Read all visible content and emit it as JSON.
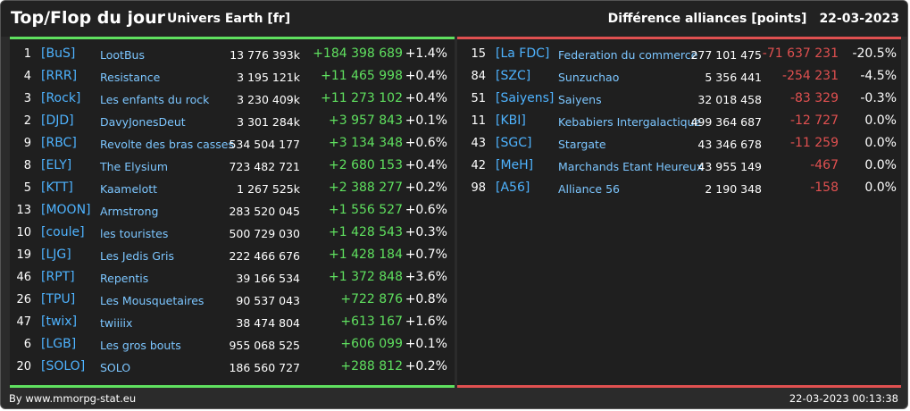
{
  "header": {
    "title": "Top/Flop du jour",
    "universe": "Univers Earth [fr]",
    "metric": "Différence alliances [points]",
    "date": "22-03-2023"
  },
  "top": [
    {
      "rank": "1",
      "tag": "[BuS]",
      "name": "LootBus",
      "points": "13 776 393k",
      "diff": "+184 398 689",
      "pct": "+1.4%"
    },
    {
      "rank": "4",
      "tag": "[RRR]",
      "name": "Resistance",
      "points": "3 195 121k",
      "diff": "+11 465 998",
      "pct": "+0.4%"
    },
    {
      "rank": "3",
      "tag": "[Rock]",
      "name": "Les enfants du rock",
      "points": "3 230 409k",
      "diff": "+11 273 102",
      "pct": "+0.4%"
    },
    {
      "rank": "2",
      "tag": "[DJD]",
      "name": "DavyJonesDeut",
      "points": "3 301 284k",
      "diff": "+3 957 843",
      "pct": "+0.1%"
    },
    {
      "rank": "9",
      "tag": "[RBC]",
      "name": "Revolte des bras casses",
      "points": "534 504 177",
      "diff": "+3 134 348",
      "pct": "+0.6%"
    },
    {
      "rank": "8",
      "tag": "[ELY]",
      "name": "The Elysium",
      "points": "723 482 721",
      "diff": "+2 680 153",
      "pct": "+0.4%"
    },
    {
      "rank": "5",
      "tag": "[KTT]",
      "name": "Kaamelott",
      "points": "1 267 525k",
      "diff": "+2 388 277",
      "pct": "+0.2%"
    },
    {
      "rank": "13",
      "tag": "[MOON]",
      "name": "Armstrong",
      "points": "283 520 045",
      "diff": "+1 556 527",
      "pct": "+0.6%"
    },
    {
      "rank": "10",
      "tag": "[coule]",
      "name": "les touristes",
      "points": "500 729 030",
      "diff": "+1 428 543",
      "pct": "+0.3%"
    },
    {
      "rank": "19",
      "tag": "[LJG]",
      "name": "Les Jedis Gris",
      "points": "222 466 676",
      "diff": "+1 428 184",
      "pct": "+0.7%"
    },
    {
      "rank": "46",
      "tag": "[RPT]",
      "name": "Repentis",
      "points": "39 166 534",
      "diff": "+1 372 848",
      "pct": "+3.6%"
    },
    {
      "rank": "26",
      "tag": "[TPU]",
      "name": "Les Mousquetaires",
      "points": "90 537 043",
      "diff": "+722 876",
      "pct": "+0.8%"
    },
    {
      "rank": "47",
      "tag": "[twix]",
      "name": "twiiiix",
      "points": "38 474 804",
      "diff": "+613 167",
      "pct": "+1.6%"
    },
    {
      "rank": "6",
      "tag": "[LGB]",
      "name": "Les gros bouts",
      "points": "955 068 525",
      "diff": "+606 099",
      "pct": "+0.1%"
    },
    {
      "rank": "20",
      "tag": "[SOLO]",
      "name": "SOLO",
      "points": "186 560 727",
      "diff": "+288 812",
      "pct": "+0.2%"
    }
  ],
  "flop": [
    {
      "rank": "15",
      "tag": "[La FDC]",
      "name": "Federation du commerce",
      "points": "277 101 475",
      "diff": "-71 637 231",
      "pct": "-20.5%"
    },
    {
      "rank": "84",
      "tag": "[SZC]",
      "name": "Sunzuchao",
      "points": "5 356 441",
      "diff": "-254 231",
      "pct": "-4.5%"
    },
    {
      "rank": "51",
      "tag": "[Saiyens]",
      "name": "Saiyens",
      "points": "32 018 458",
      "diff": "-83 329",
      "pct": "-0.3%"
    },
    {
      "rank": "11",
      "tag": "[KBI]",
      "name": "Kebabiers Intergalactique",
      "points": "499 364 687",
      "diff": "-12 727",
      "pct": "0.0%"
    },
    {
      "rank": "43",
      "tag": "[SGC]",
      "name": "Stargate",
      "points": "43 346 678",
      "diff": "-11 259",
      "pct": "0.0%"
    },
    {
      "rank": "42",
      "tag": "[MeH]",
      "name": "Marchands Etant Heureux",
      "points": "43 955 149",
      "diff": "-467",
      "pct": "0.0%"
    },
    {
      "rank": "98",
      "tag": "[A56]",
      "name": "Alliance 56",
      "points": "2 190 348",
      "diff": "-158",
      "pct": "0.0%"
    }
  ],
  "footer": {
    "credit": "By www.mmorpg-stat.eu",
    "timestamp": "22-03-2023 00:13:38"
  },
  "colors": {
    "positive": "#5fe05f",
    "negative": "#e05050",
    "tag": "#4eb3ff",
    "name": "#7cc6ff"
  }
}
